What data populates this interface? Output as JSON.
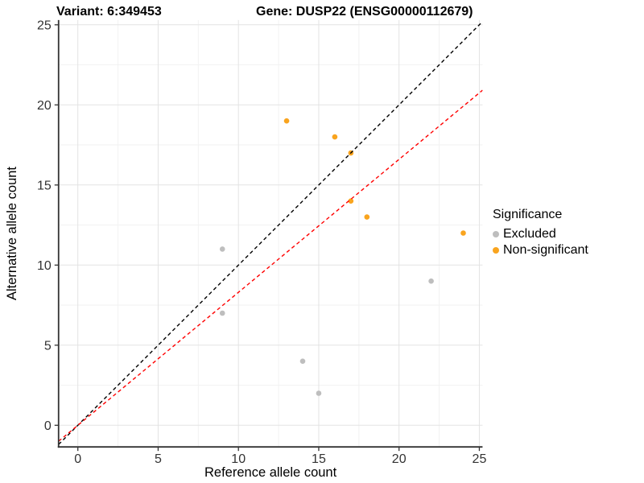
{
  "titles": {
    "variant": "Variant: 6:349453",
    "gene": "Gene: DUSP22 (ENSG00000112679)"
  },
  "legend": {
    "title": "Significance",
    "entries": [
      {
        "label": "Excluded",
        "color": "#BEBEBE"
      },
      {
        "label": "Non-significant",
        "color": "#F9A41E"
      }
    ]
  },
  "chart_data": {
    "type": "scatter",
    "xlabel": "Reference allele count",
    "ylabel": "Alternative allele count",
    "xlim": [
      -1.2,
      25.2
    ],
    "ylim": [
      -1.35,
      25.3
    ],
    "x_ticks": [
      0,
      5,
      10,
      15,
      20,
      25
    ],
    "y_ticks": [
      0,
      5,
      10,
      15,
      20,
      25
    ],
    "x_minor_ticks": [
      2.5,
      7.5,
      12.5,
      17.5,
      22.5
    ],
    "y_minor_ticks": [
      2.5,
      7.5,
      12.5,
      17.5,
      22.5
    ],
    "grid": "major+minor",
    "legend_position": "right",
    "series": [
      {
        "name": "Excluded",
        "color": "#BEBEBE",
        "points": [
          [
            9,
            11
          ],
          [
            9,
            7
          ],
          [
            14,
            4
          ],
          [
            15,
            2
          ],
          [
            22,
            9
          ]
        ]
      },
      {
        "name": "Non-significant",
        "color": "#F9A41E",
        "points": [
          [
            13,
            19
          ],
          [
            16,
            18
          ],
          [
            17,
            17
          ],
          [
            17,
            14
          ],
          [
            18,
            13
          ],
          [
            24,
            12
          ]
        ]
      }
    ],
    "ablines": [
      {
        "name": "identity-line",
        "slope": 1,
        "intercept": 0,
        "color": "#000000",
        "style": "dashed"
      },
      {
        "name": "expected-ratio-line",
        "slope": 0.83,
        "intercept": 0,
        "color": "#FF0000",
        "style": "dashed"
      }
    ],
    "colors": {
      "grid_major": "#E3E3E3",
      "grid_minor": "#F2F2F2",
      "axis": "#333333",
      "tick_label": "#333333",
      "axis_title": "#000000"
    }
  }
}
